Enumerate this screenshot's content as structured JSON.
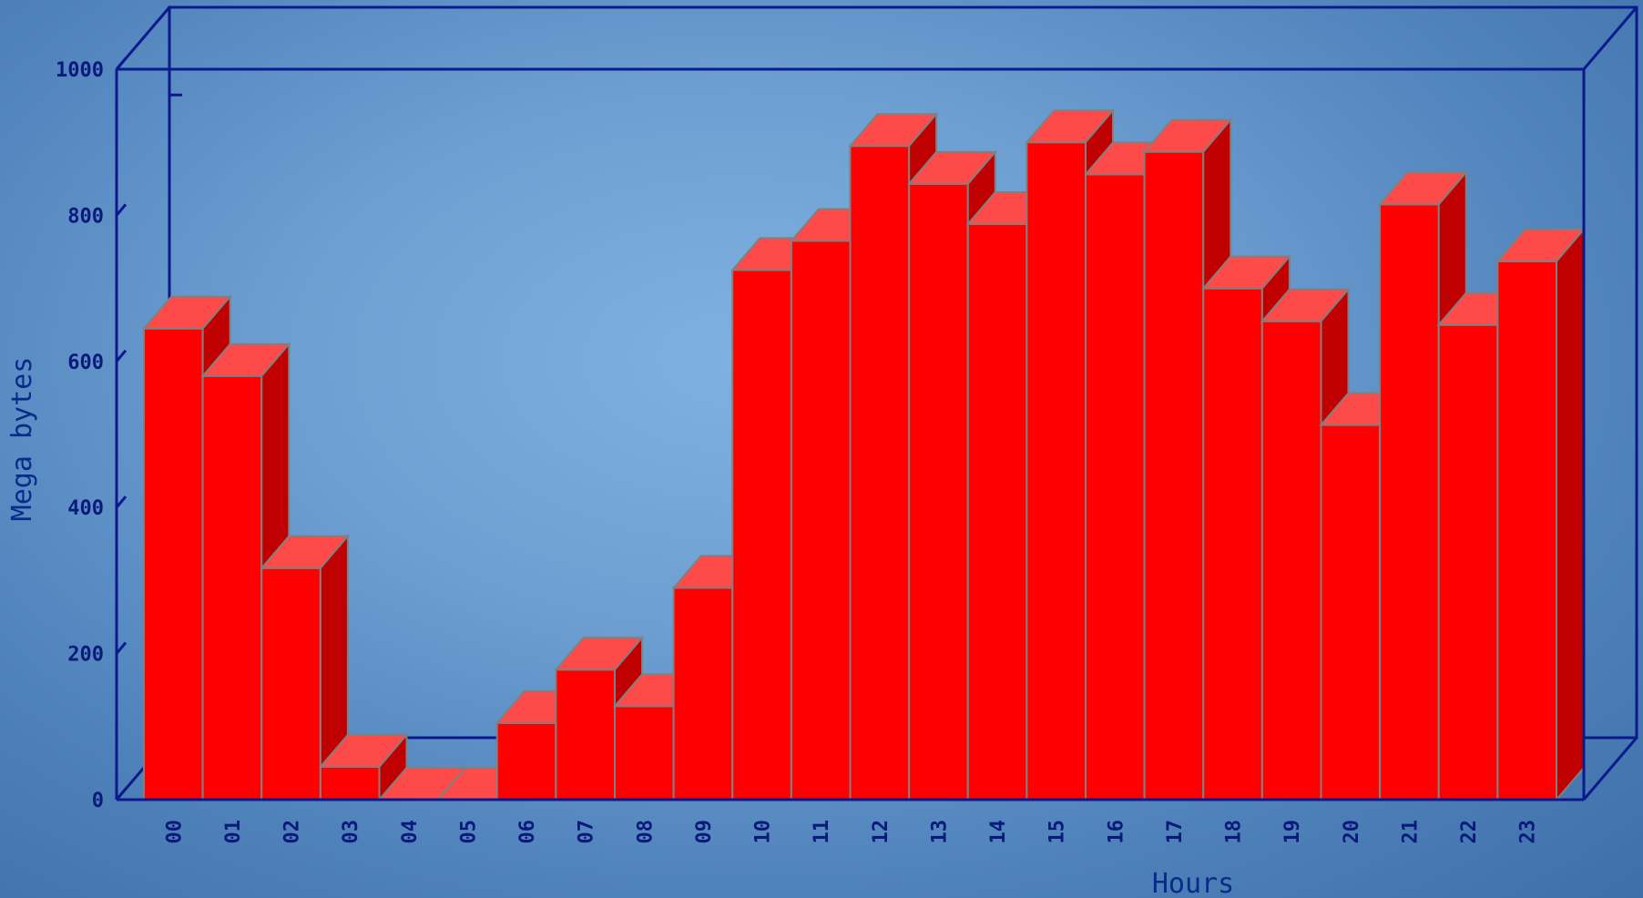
{
  "chart_data": {
    "type": "bar",
    "title": "",
    "xlabel": "Hours",
    "ylabel": "Mega bytes",
    "ylim": [
      0,
      1000
    ],
    "yticks": [
      0,
      200,
      400,
      600,
      800,
      1000
    ],
    "grid": false,
    "categories": [
      "00",
      "01",
      "02",
      "03",
      "04",
      "05",
      "06",
      "07",
      "08",
      "09",
      "10",
      "11",
      "12",
      "13",
      "14",
      "15",
      "16",
      "17",
      "18",
      "19",
      "20",
      "21",
      "22",
      "23"
    ],
    "series": [
      {
        "values": [
          645,
          580,
          317,
          45,
          0,
          0,
          105,
          178,
          128,
          290,
          725,
          765,
          895,
          843,
          788,
          900,
          856,
          887,
          700,
          655,
          513,
          815,
          650,
          737
        ]
      }
    ],
    "colors": {
      "bar_front": "#ff0000",
      "bar_top": "#ff4a4a",
      "bar_side": "#c00000",
      "bar_edge": "#808080",
      "axis": "#0a1a8c"
    }
  }
}
